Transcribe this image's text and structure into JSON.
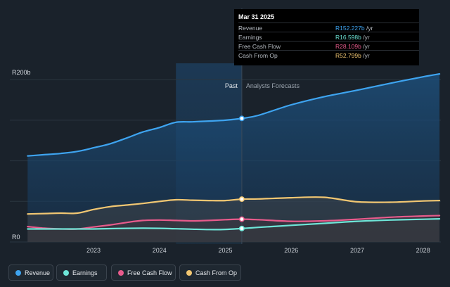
{
  "chart_data": {
    "type": "area",
    "y_axis_labels": {
      "top": "R200b",
      "bottom": "R0"
    },
    "ylim": [
      0,
      240
    ],
    "x_tick_labels": [
      "2023",
      "2024",
      "2025",
      "2026",
      "2027",
      "2028"
    ],
    "x_tick_values": [
      2023.0,
      2024.0,
      2025.0,
      2026.0,
      2027.0,
      2028.0
    ],
    "xlim": [
      2021.73,
      2028.27
    ],
    "past_label": "Past",
    "forecast_label": "Analysts Forecasts",
    "divider_x": 2025.25,
    "highlight_range": [
      2024.25,
      2025.25
    ],
    "tooltip": {
      "date": "Mar 31 2025",
      "rows": [
        {
          "label": "Revenue",
          "value": "R152.227b",
          "unit": " /yr",
          "color": "#3ea4f0"
        },
        {
          "label": "Earnings",
          "value": "R16.598b",
          "unit": " /yr",
          "color": "#6ee6d8"
        },
        {
          "label": "Free Cash Flow",
          "value": "R28.109b",
          "unit": " /yr",
          "color": "#e85b8c"
        },
        {
          "label": "Cash From Op",
          "value": "R52.799b",
          "unit": " /yr",
          "color": "#f2c772"
        }
      ]
    },
    "series": [
      {
        "name": "Revenue",
        "color": "#3ea4f0",
        "x": [
          2022.0,
          2022.25,
          2022.5,
          2022.75,
          2023.0,
          2023.25,
          2023.5,
          2023.75,
          2024.0,
          2024.25,
          2024.5,
          2024.75,
          2025.0,
          2025.25,
          2025.5,
          2026.0,
          2026.5,
          2027.0,
          2027.5,
          2028.0,
          2028.25
        ],
        "y": [
          106.0,
          107.5,
          109.0,
          111.5,
          116.0,
          121.0,
          128.0,
          135.5,
          141.0,
          147.5,
          148.0,
          149.0,
          150.0,
          152.2,
          156.0,
          169.0,
          179.0,
          187.0,
          195.5,
          203.5,
          207.0
        ]
      },
      {
        "name": "Cash From Op",
        "color": "#f2c772",
        "x": [
          2022.0,
          2022.25,
          2022.5,
          2022.75,
          2023.0,
          2023.25,
          2023.5,
          2023.75,
          2024.0,
          2024.25,
          2024.5,
          2024.75,
          2025.0,
          2025.25,
          2025.5,
          2026.0,
          2026.5,
          2027.0,
          2027.5,
          2028.0,
          2028.25
        ],
        "y": [
          34.5,
          35.0,
          35.5,
          35.5,
          40.0,
          43.5,
          45.5,
          47.5,
          50.0,
          52.0,
          51.5,
          51.0,
          51.0,
          52.8,
          53.0,
          54.5,
          55.0,
          49.5,
          49.0,
          50.5,
          51.0
        ]
      },
      {
        "name": "Free Cash Flow",
        "color": "#e85b8c",
        "x": [
          2022.0,
          2022.25,
          2022.5,
          2022.75,
          2023.0,
          2023.25,
          2023.5,
          2023.75,
          2024.0,
          2024.25,
          2024.5,
          2024.75,
          2025.0,
          2025.25,
          2025.5,
          2026.0,
          2026.5,
          2027.0,
          2027.5,
          2028.0,
          2028.25
        ],
        "y": [
          19.0,
          17.0,
          16.0,
          16.0,
          18.5,
          21.0,
          24.0,
          26.5,
          27.0,
          26.5,
          26.0,
          26.5,
          27.5,
          28.1,
          27.5,
          25.5,
          26.0,
          28.0,
          30.5,
          32.0,
          32.5
        ]
      },
      {
        "name": "Earnings",
        "color": "#6ee6d8",
        "x": [
          2022.0,
          2022.25,
          2022.5,
          2022.75,
          2023.0,
          2023.25,
          2023.5,
          2023.75,
          2024.0,
          2024.25,
          2024.5,
          2024.75,
          2025.0,
          2025.25,
          2025.5,
          2026.0,
          2026.5,
          2027.0,
          2027.5,
          2028.0,
          2028.25
        ],
        "y": [
          16.0,
          16.0,
          16.0,
          16.0,
          16.0,
          16.5,
          16.8,
          17.0,
          16.8,
          16.3,
          15.8,
          15.3,
          15.5,
          16.6,
          18.0,
          20.5,
          23.0,
          25.5,
          27.0,
          28.0,
          28.5
        ]
      }
    ]
  },
  "legend": [
    {
      "label": "Revenue",
      "color": "#3ea4f0"
    },
    {
      "label": "Earnings",
      "color": "#6ee6d8"
    },
    {
      "label": "Free Cash Flow",
      "color": "#e85b8c"
    },
    {
      "label": "Cash From Op",
      "color": "#f2c772"
    }
  ]
}
